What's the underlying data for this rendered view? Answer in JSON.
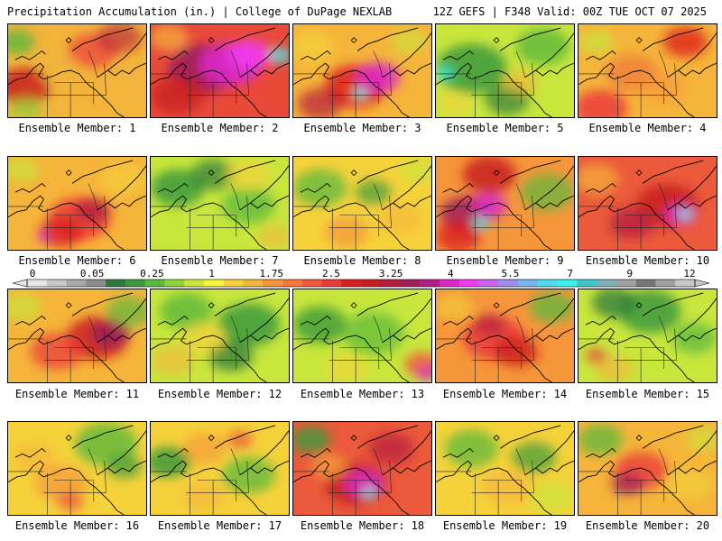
{
  "header": {
    "left": "Precipitation Accumulation (in.) | College of DuPage NEXLAB",
    "right": "12Z GEFS | F348 Valid: 00Z TUE OCT 07 2025"
  },
  "colorbar": {
    "labels": [
      "0",
      "0.05",
      "0.25",
      "1",
      "1.75",
      "2.5",
      "3.25",
      "4",
      "5.5",
      "7",
      "9",
      "12"
    ],
    "colors": [
      "#e6e6e6",
      "#c8c8c8",
      "#a8a8a8",
      "#8c8c8c",
      "#2e7a3c",
      "#3c9a3c",
      "#5cb83c",
      "#8cd23c",
      "#c8e63c",
      "#f5f53c",
      "#f5d23c",
      "#f5b43c",
      "#f5963c",
      "#f5783c",
      "#f05a3c",
      "#eb3c3c",
      "#dc1e1e",
      "#c81e1e",
      "#b41e3c",
      "#a01e5a",
      "#b41e8c",
      "#dc28c8",
      "#f03cf0",
      "#c864f0",
      "#a08cf0",
      "#78b4f0",
      "#50dcf0",
      "#3cf0f0",
      "#3cc8c8",
      "#78b4b4",
      "#a0a0a0",
      "#787878",
      "#a0a0a0",
      "#c8c8c8"
    ]
  },
  "members": [
    {
      "label": "Ensemble Member: 1",
      "base": "#f2b43a",
      "blobs": [
        [
          "#c81e1e",
          18,
          70,
          30,
          0.85
        ],
        [
          "#eb3c3c",
          95,
          30,
          28,
          0.7
        ],
        [
          "#b41e3c",
          125,
          15,
          25,
          0.6
        ],
        [
          "#f0b43c",
          60,
          55,
          25,
          0.6
        ],
        [
          "#5cb83c",
          10,
          20,
          20,
          0.8
        ],
        [
          "#8cd23c",
          20,
          95,
          18,
          0.7
        ]
      ]
    },
    {
      "label": "Ensemble Member: 2",
      "base": "#e84a3a",
      "blobs": [
        [
          "#a01e5a",
          60,
          50,
          40,
          0.9
        ],
        [
          "#dc28c8",
          90,
          45,
          35,
          0.9
        ],
        [
          "#f03cf0",
          110,
          35,
          25,
          0.85
        ],
        [
          "#3cf0f0",
          145,
          35,
          12,
          0.85
        ],
        [
          "#c81e1e",
          30,
          80,
          30,
          0.8
        ],
        [
          "#f5b43c",
          20,
          15,
          22,
          0.7
        ]
      ]
    },
    {
      "label": "Ensemble Member: 3",
      "base": "#f5b43a",
      "blobs": [
        [
          "#dc1e1e",
          70,
          70,
          35,
          0.85
        ],
        [
          "#dc28c8",
          95,
          60,
          25,
          0.85
        ],
        [
          "#3cf0f0",
          75,
          78,
          8,
          0.9
        ],
        [
          "#b41e3c",
          30,
          90,
          25,
          0.7
        ],
        [
          "#f5d23c",
          20,
          25,
          25,
          0.7
        ],
        [
          "#c8e63c",
          130,
          20,
          20,
          0.6
        ]
      ]
    },
    {
      "label": "Ensemble Member: 5",
      "base": "#c8e63c",
      "blobs": [
        [
          "#3c9a3c",
          40,
          50,
          40,
          0.85
        ],
        [
          "#2e7a3c",
          80,
          85,
          25,
          0.7
        ],
        [
          "#5cb83c",
          120,
          25,
          30,
          0.8
        ],
        [
          "#3cf0f0",
          10,
          55,
          10,
          0.8
        ],
        [
          "#f5b43c",
          95,
          65,
          20,
          0.6
        ],
        [
          "#f5d23c",
          20,
          90,
          20,
          0.6
        ]
      ]
    },
    {
      "label": "Ensemble Member: 4",
      "base": "#f5b43a",
      "blobs": [
        [
          "#eb3c3c",
          25,
          95,
          30,
          0.85
        ],
        [
          "#dc1e1e",
          120,
          20,
          25,
          0.75
        ],
        [
          "#f0783c",
          60,
          55,
          30,
          0.7
        ],
        [
          "#c8e63c",
          20,
          20,
          20,
          0.7
        ],
        [
          "#f5963c",
          95,
          70,
          25,
          0.6
        ]
      ]
    },
    {
      "label": "Ensemble Member: 6",
      "base": "#f5b43a",
      "blobs": [
        [
          "#eb3c3c",
          80,
          70,
          35,
          0.85
        ],
        [
          "#dc1e1e",
          60,
          85,
          25,
          0.8
        ],
        [
          "#b41e3c",
          95,
          60,
          20,
          0.75
        ],
        [
          "#dc28c8",
          40,
          90,
          8,
          0.8
        ],
        [
          "#c8e63c",
          15,
          15,
          20,
          0.7
        ],
        [
          "#f5d23c",
          130,
          25,
          25,
          0.6
        ]
      ]
    },
    {
      "label": "Ensemble Member: 7",
      "base": "#c8e63c",
      "blobs": [
        [
          "#3c9a3c",
          30,
          35,
          30,
          0.85
        ],
        [
          "#2e7a3c",
          70,
          20,
          25,
          0.7
        ],
        [
          "#5cb83c",
          110,
          55,
          30,
          0.75
        ],
        [
          "#f5d23c",
          110,
          20,
          25,
          0.7
        ],
        [
          "#f5b43c",
          140,
          90,
          20,
          0.6
        ]
      ]
    },
    {
      "label": "Ensemble Member: 8",
      "base": "#f5d23a",
      "blobs": [
        [
          "#5cb83c",
          30,
          35,
          30,
          0.75
        ],
        [
          "#3c9a3c",
          90,
          40,
          20,
          0.7
        ],
        [
          "#f5963c",
          60,
          85,
          25,
          0.7
        ],
        [
          "#f5b43c",
          120,
          70,
          25,
          0.6
        ],
        [
          "#c8e63c",
          140,
          15,
          20,
          0.7
        ]
      ]
    },
    {
      "label": "Ensemble Member: 9",
      "base": "#f5963a",
      "blobs": [
        [
          "#c81e1e",
          60,
          20,
          30,
          0.85
        ],
        [
          "#a01e5a",
          35,
          65,
          30,
          0.85
        ],
        [
          "#dc28c8",
          60,
          55,
          20,
          0.85
        ],
        [
          "#3cf0f0",
          50,
          75,
          9,
          0.9
        ],
        [
          "#dc1e1e",
          25,
          90,
          25,
          0.8
        ],
        [
          "#5cb83c",
          125,
          40,
          30,
          0.7
        ]
      ]
    },
    {
      "label": "Ensemble Member: 10",
      "base": "#eb5a3a",
      "blobs": [
        [
          "#c81e1e",
          100,
          55,
          35,
          0.85
        ],
        [
          "#dc28c8",
          115,
          65,
          18,
          0.85
        ],
        [
          "#3cf0f0",
          120,
          65,
          8,
          0.9
        ],
        [
          "#b41e3c",
          60,
          75,
          25,
          0.75
        ],
        [
          "#f5b43c",
          20,
          25,
          25,
          0.7
        ]
      ]
    },
    {
      "label": "Ensemble Member: 11",
      "base": "#f5b43a",
      "blobs": [
        [
          "#c81e1e",
          100,
          55,
          35,
          0.85
        ],
        [
          "#a01e5a",
          115,
          50,
          22,
          0.85
        ],
        [
          "#eb3c3c",
          55,
          70,
          30,
          0.75
        ],
        [
          "#5cb83c",
          135,
          25,
          25,
          0.7
        ],
        [
          "#c8e63c",
          15,
          20,
          22,
          0.7
        ]
      ]
    },
    {
      "label": "Ensemble Member: 12",
      "base": "#c8e63c",
      "blobs": [
        [
          "#3c9a3c",
          110,
          40,
          35,
          0.85
        ],
        [
          "#2e7a3c",
          90,
          75,
          25,
          0.75
        ],
        [
          "#5cb83c",
          40,
          25,
          30,
          0.8
        ],
        [
          "#f5b43c",
          25,
          80,
          25,
          0.6
        ],
        [
          "#f5d23c",
          60,
          55,
          25,
          0.7
        ]
      ]
    },
    {
      "label": "Ensemble Member: 13",
      "base": "#c8e63c",
      "blobs": [
        [
          "#3c9a3c",
          30,
          40,
          30,
          0.8
        ],
        [
          "#5cb83c",
          90,
          50,
          35,
          0.7
        ],
        [
          "#f5d23c",
          60,
          90,
          25,
          0.6
        ],
        [
          "#f05a3c",
          145,
          85,
          20,
          0.85
        ],
        [
          "#dc28c8",
          150,
          95,
          12,
          0.8
        ]
      ]
    },
    {
      "label": "Ensemble Member: 14",
      "base": "#f5963a",
      "blobs": [
        [
          "#eb3c3c",
          65,
          55,
          35,
          0.85
        ],
        [
          "#c81e1e",
          90,
          70,
          25,
          0.75
        ],
        [
          "#b41e3c",
          60,
          40,
          18,
          0.7
        ],
        [
          "#5cb83c",
          130,
          20,
          25,
          0.75
        ],
        [
          "#f5d23c",
          20,
          20,
          22,
          0.6
        ]
      ]
    },
    {
      "label": "Ensemble Member: 15",
      "base": "#c8e63c",
      "blobs": [
        [
          "#3c9a3c",
          80,
          25,
          35,
          0.85
        ],
        [
          "#2e7a3c",
          40,
          15,
          25,
          0.75
        ],
        [
          "#5cb83c",
          130,
          55,
          25,
          0.75
        ],
        [
          "#f5b43c",
          40,
          90,
          22,
          0.65
        ],
        [
          "#eb3c3c",
          20,
          75,
          12,
          0.75
        ]
      ]
    },
    {
      "label": "Ensemble Member: 16",
      "base": "#f5d23a",
      "blobs": [
        [
          "#5cb83c",
          110,
          25,
          35,
          0.8
        ],
        [
          "#3c9a3c",
          130,
          50,
          20,
          0.7
        ],
        [
          "#f5963c",
          60,
          70,
          30,
          0.7
        ],
        [
          "#f5b43c",
          30,
          40,
          25,
          0.6
        ],
        [
          "#eb3c3c",
          70,
          90,
          15,
          0.6
        ]
      ]
    },
    {
      "label": "Ensemble Member: 17",
      "base": "#f5d23a",
      "blobs": [
        [
          "#3c9a3c",
          20,
          45,
          25,
          0.85
        ],
        [
          "#5cb83c",
          110,
          60,
          30,
          0.75
        ],
        [
          "#f5963c",
          60,
          30,
          25,
          0.65
        ],
        [
          "#eb3c3c",
          100,
          20,
          15,
          0.6
        ],
        [
          "#f5b43c",
          60,
          85,
          25,
          0.6
        ]
      ]
    },
    {
      "label": "Ensemble Member: 18",
      "base": "#eb5a3a",
      "blobs": [
        [
          "#c81e1e",
          70,
          70,
          35,
          0.85
        ],
        [
          "#dc28c8",
          80,
          70,
          22,
          0.85
        ],
        [
          "#3cf0f0",
          85,
          80,
          8,
          0.9
        ],
        [
          "#b41e3c",
          110,
          30,
          25,
          0.7
        ],
        [
          "#3c9a3c",
          20,
          20,
          22,
          0.8
        ],
        [
          "#f5b43c",
          40,
          50,
          20,
          0.6
        ]
      ]
    },
    {
      "label": "Ensemble Member: 19",
      "base": "#f5d23a",
      "blobs": [
        [
          "#5cb83c",
          40,
          30,
          30,
          0.75
        ],
        [
          "#3c9a3c",
          110,
          40,
          25,
          0.7
        ],
        [
          "#f5b43c",
          80,
          75,
          30,
          0.6
        ],
        [
          "#c8e63c",
          130,
          85,
          25,
          0.7
        ]
      ]
    },
    {
      "label": "Ensemble Member: 20",
      "base": "#f5b43a",
      "blobs": [
        [
          "#eb3c3c",
          70,
          55,
          30,
          0.8
        ],
        [
          "#a01e5a",
          55,
          70,
          18,
          0.75
        ],
        [
          "#5cb83c",
          25,
          20,
          25,
          0.75
        ],
        [
          "#f5d23c",
          125,
          70,
          25,
          0.65
        ],
        [
          "#c8e63c",
          140,
          20,
          20,
          0.6
        ]
      ]
    }
  ]
}
